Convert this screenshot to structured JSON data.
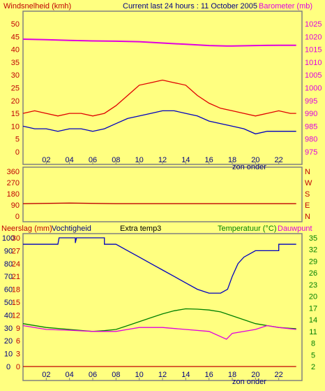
{
  "colors": {
    "background": "#ffff80",
    "frame": "#808080",
    "wind_label": "#c00000",
    "baro_label": "#e000e0",
    "title": "#000080",
    "dir_label": "#c00000",
    "rain_label": "#c00000",
    "humidity_label": "#000080",
    "temp_label": "#008000",
    "dew_label": "#e000e0",
    "tick_left": "#c00000",
    "tick_right_baro": "#e000e0",
    "tick_right_temp": "#008000",
    "tick_x": "#000080"
  },
  "header": {
    "wind_label": "Windsnelheid (kmh)",
    "title": "Current last 24 hours : 11 October 2005",
    "baro_label": "Barometer (mb)"
  },
  "x_axis": {
    "ticks": [
      "02",
      "04",
      "06",
      "08",
      "10",
      "12",
      "14",
      "16",
      "18",
      "20",
      "22"
    ],
    "sunset_label": "zon onder"
  },
  "panel2": {
    "y_ticks": [
      "360",
      "270",
      "180",
      "90",
      "0"
    ],
    "compass": [
      "N",
      "W",
      "S",
      "E",
      "N"
    ]
  },
  "panel3": {
    "rain_label": "Neerslag (mm)",
    "humidity_label": "Vochtigheid",
    "extra_label": "Extra temp3",
    "temp_label": "Temperatuur (°C)",
    "dew_label": "Dauwpunt"
  },
  "chart_data": [
    {
      "type": "line",
      "x_range": [
        0,
        24
      ],
      "y_left": {
        "ticks": [
          "50",
          "45",
          "40",
          "35",
          "30",
          "25",
          "20",
          "15",
          "10",
          "5",
          "0"
        ],
        "range": [
          0,
          50
        ]
      },
      "y_right": {
        "ticks": [
          "1025",
          "1020",
          "1015",
          "1010",
          "1005",
          "1000",
          "995",
          "990",
          "985",
          "980",
          "975"
        ],
        "range": [
          975,
          1025
        ]
      },
      "series": [
        {
          "key": "gust",
          "color": "#e00000",
          "axis": "left",
          "points": [
            [
              0,
              15
            ],
            [
              1,
              16
            ],
            [
              2,
              15
            ],
            [
              3,
              14
            ],
            [
              4,
              15
            ],
            [
              5,
              15
            ],
            [
              6,
              14
            ],
            [
              7,
              15
            ],
            [
              8,
              18
            ],
            [
              9,
              22
            ],
            [
              10,
              26
            ],
            [
              11,
              27
            ],
            [
              12,
              28
            ],
            [
              13,
              27
            ],
            [
              14,
              26
            ],
            [
              15,
              22
            ],
            [
              16,
              19
            ],
            [
              17,
              17
            ],
            [
              18,
              16
            ],
            [
              19,
              15
            ],
            [
              20,
              14
            ],
            [
              21,
              15
            ],
            [
              22,
              16
            ],
            [
              23,
              15
            ],
            [
              23.5,
              15
            ]
          ]
        },
        {
          "key": "average",
          "color": "#0000c0",
          "axis": "left",
          "points": [
            [
              0,
              10
            ],
            [
              1,
              9
            ],
            [
              2,
              9
            ],
            [
              3,
              8
            ],
            [
              4,
              9
            ],
            [
              5,
              9
            ],
            [
              6,
              8
            ],
            [
              7,
              9
            ],
            [
              8,
              11
            ],
            [
              9,
              13
            ],
            [
              10,
              14
            ],
            [
              11,
              15
            ],
            [
              12,
              16
            ],
            [
              13,
              16
            ],
            [
              14,
              15
            ],
            [
              15,
              14
            ],
            [
              16,
              12
            ],
            [
              17,
              11
            ],
            [
              18,
              10
            ],
            [
              19,
              9
            ],
            [
              20,
              7
            ],
            [
              21,
              8
            ],
            [
              22,
              8
            ],
            [
              23,
              8
            ],
            [
              23.5,
              8
            ]
          ]
        },
        {
          "key": "barometer",
          "color": "#e000e0",
          "axis": "right",
          "points": [
            [
              0,
              1019
            ],
            [
              2,
              1018.8
            ],
            [
              4,
              1018.5
            ],
            [
              6,
              1018.3
            ],
            [
              8,
              1018.2
            ],
            [
              10,
              1018
            ],
            [
              12,
              1017.5
            ],
            [
              14,
              1017
            ],
            [
              16,
              1016.5
            ],
            [
              17.5,
              1016.3
            ],
            [
              18,
              1016.3
            ],
            [
              20,
              1016.5
            ],
            [
              22,
              1016.6
            ],
            [
              23.5,
              1016.6
            ]
          ]
        }
      ]
    },
    {
      "type": "line",
      "x_range": [
        0,
        24
      ],
      "y_left": {
        "range": [
          0,
          360
        ]
      },
      "series": [
        {
          "key": "wind_direction",
          "color": "#c00000",
          "points": [
            [
              0,
              100
            ],
            [
              4,
              105
            ],
            [
              8,
              100
            ],
            [
              12,
              100
            ],
            [
              16,
              100
            ],
            [
              20,
              100
            ],
            [
              23.5,
              100
            ]
          ]
        }
      ]
    },
    {
      "type": "line",
      "x_range": [
        0,
        24
      ],
      "y_left": {
        "ticks": [
          "100",
          "90",
          "80",
          "70",
          "60",
          "50",
          "40",
          "30",
          "20",
          "10",
          "0"
        ],
        "range": [
          0,
          100
        ]
      },
      "y_left_rain": {
        "ticks": [
          "30",
          "27",
          "24",
          "21",
          "18",
          "15",
          "12",
          "9",
          "6",
          "3",
          "0"
        ],
        "range": [
          0,
          30
        ]
      },
      "y_right": {
        "ticks": [
          "35",
          "32",
          "29",
          "26",
          "23",
          "20",
          "17",
          "14",
          "11",
          "8",
          "5",
          "2"
        ],
        "range": [
          2,
          35
        ]
      },
      "series": [
        {
          "key": "humidity",
          "color": "#0000c0",
          "axis": "left",
          "points": [
            [
              0,
              95
            ],
            [
              3,
              95
            ],
            [
              3.1,
              100
            ],
            [
              4.5,
              100
            ],
            [
              4.5,
              96
            ],
            [
              4.6,
              100
            ],
            [
              7,
              100
            ],
            [
              7,
              95
            ],
            [
              8,
              95
            ],
            [
              9,
              90
            ],
            [
              10,
              85
            ],
            [
              11,
              80
            ],
            [
              12,
              75
            ],
            [
              13,
              70
            ],
            [
              14,
              65
            ],
            [
              15,
              60
            ],
            [
              16,
              57
            ],
            [
              17,
              57
            ],
            [
              17.6,
              60
            ],
            [
              18,
              70
            ],
            [
              18.5,
              80
            ],
            [
              19,
              85
            ],
            [
              20,
              90
            ],
            [
              22,
              90
            ],
            [
              22,
              95
            ],
            [
              23,
              95
            ],
            [
              23.5,
              95
            ]
          ]
        },
        {
          "key": "temperature",
          "color": "#008000",
          "axis": "right",
          "points": [
            [
              0,
              13
            ],
            [
              2,
              12
            ],
            [
              4,
              11.5
            ],
            [
              6,
              11
            ],
            [
              7,
              11.2
            ],
            [
              8,
              11.5
            ],
            [
              9,
              12.5
            ],
            [
              10,
              13.5
            ],
            [
              11,
              14.5
            ],
            [
              12,
              15.5
            ],
            [
              13,
              16.3
            ],
            [
              14,
              16.8
            ],
            [
              15,
              16.7
            ],
            [
              16,
              16.5
            ],
            [
              17,
              16
            ],
            [
              18,
              15
            ],
            [
              19,
              14
            ],
            [
              20,
              13
            ],
            [
              21,
              12.5
            ],
            [
              22,
              12
            ],
            [
              23,
              11.8
            ],
            [
              23.5,
              11.7
            ]
          ]
        },
        {
          "key": "dewpoint",
          "color": "#e000e0",
          "axis": "right",
          "points": [
            [
              0,
              12.5
            ],
            [
              2,
              11.5
            ],
            [
              4,
              11.3
            ],
            [
              6,
              11
            ],
            [
              7,
              11
            ],
            [
              8,
              11
            ],
            [
              9,
              11.5
            ],
            [
              10,
              12
            ],
            [
              12,
              12
            ],
            [
              14,
              11.5
            ],
            [
              16,
              11
            ],
            [
              17.5,
              9
            ],
            [
              18,
              10.5
            ],
            [
              20,
              11.5
            ],
            [
              21,
              12.5
            ],
            [
              22,
              12
            ],
            [
              23.5,
              11.5
            ]
          ]
        },
        {
          "key": "rain",
          "color": "#c00000",
          "axis": "rain",
          "points": [
            [
              0,
              0
            ],
            [
              23.5,
              0
            ]
          ]
        }
      ]
    }
  ]
}
